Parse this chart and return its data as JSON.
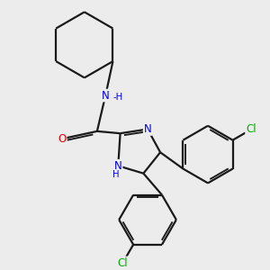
{
  "background_color": "#ececec",
  "bond_color": "#1a1a1a",
  "bond_width": 1.6,
  "atom_colors": {
    "N": "#0000ee",
    "O": "#dd0000",
    "Cl": "#00aa00",
    "C": "#1a1a1a"
  },
  "font_size_atom": 8.5
}
